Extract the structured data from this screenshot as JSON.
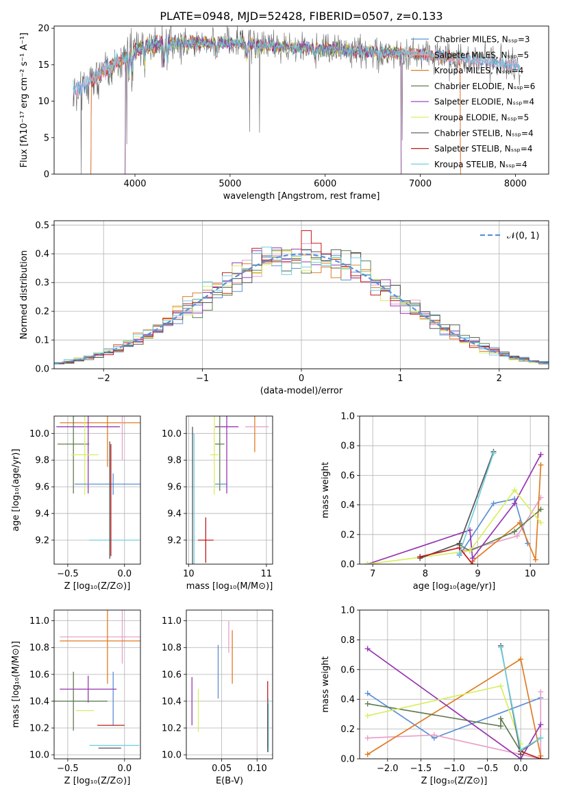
{
  "figure": {
    "title": "PLATE=0948, MJD=52428, FIBERID=0507, z=0.133"
  },
  "colors": {
    "chabrier_miles": "#5b8fd6",
    "salpeter_miles": "#e8a0c8",
    "kroupa_miles": "#e07b22",
    "chabrier_elodie": "#5e7d50",
    "salpeter_elodie": "#9636b0",
    "kroupa_elodie": "#d8ee60",
    "chabrier_stelib": "#555555",
    "salpeter_stelib": "#c01818",
    "kroupa_stelib": "#70d0e0",
    "normal_curve": "#5b8fd6"
  },
  "chart_data": [
    {
      "id": "spectrum",
      "type": "line",
      "title": "PLATE=0948, MJD=52428, FIBERID=0507, z=0.133",
      "xlabel": "wavelength [Angstrom, rest frame]",
      "ylabel": "Flux [fλ10⁻¹⁷ erg cm⁻² s⁻¹ A⁻¹]",
      "xlim": [
        3150,
        8350
      ],
      "ylim": [
        0,
        20.3
      ],
      "xticks": [
        4000,
        5000,
        6000,
        7000,
        8000
      ],
      "yticks": [
        0,
        5,
        10,
        15,
        20
      ],
      "grid": false,
      "legend_position": "top-right",
      "x_range": [
        3350,
        8050
      ],
      "continuum": [
        [
          3350,
          11.3
        ],
        [
          3500,
          12.5
        ],
        [
          3700,
          14.3
        ],
        [
          3900,
          16.0
        ],
        [
          4100,
          17.6
        ],
        [
          4400,
          17.9
        ],
        [
          5000,
          18.0
        ],
        [
          5500,
          17.5
        ],
        [
          6000,
          17.2
        ],
        [
          6500,
          16.8
        ],
        [
          7000,
          16.5
        ],
        [
          7500,
          15.7
        ],
        [
          8050,
          14.8
        ]
      ],
      "series": [
        {
          "name": "Chabrier MILES, Nₛₛₚ=3",
          "color": "chabrier_miles",
          "dropouts": []
        },
        {
          "name": "Salpeter MILES, Nₛₛₚ=5",
          "color": "salpeter_miles",
          "dropouts": []
        },
        {
          "name": "Kroupa MILES, Nₛₛₚ=4",
          "color": "kroupa_miles",
          "dropouts": [
            [
              3350,
              3540
            ],
            [
              7420,
              8050
            ]
          ]
        },
        {
          "name": "Chabrier ELODIE, Nₛₛₚ=6",
          "color": "chabrier_elodie",
          "dropouts": [
            [
              3350,
              3900
            ],
            [
              6800,
              8050
            ]
          ]
        },
        {
          "name": "Salpeter ELODIE, Nₛₛₚ=4",
          "color": "salpeter_elodie",
          "dropouts": [
            [
              3350,
              3900
            ],
            [
              6800,
              8050
            ]
          ]
        },
        {
          "name": "Kroupa ELODIE, Nₛₛₚ=5",
          "color": "kroupa_elodie",
          "dropouts": [
            [
              3350,
              3900
            ],
            [
              6800,
              8050
            ]
          ]
        },
        {
          "name": "Chabrier STELIB, Nₛₛₚ=4",
          "color": "chabrier_stelib",
          "dropouts": []
        },
        {
          "name": "Salpeter STELIB, Nₛₛₚ=4",
          "color": "salpeter_stelib",
          "dropouts": [
            [
              3350,
              3540
            ],
            [
              7420,
              8050
            ]
          ]
        },
        {
          "name": "Kroupa STELIB, Nₛₛₚ=4",
          "color": "kroupa_stelib",
          "dropouts": []
        }
      ]
    },
    {
      "id": "residuals",
      "type": "bar",
      "xlabel": "(data-model)/error",
      "ylabel": "Normed distribution",
      "xlim": [
        -2.5,
        2.5
      ],
      "ylim": [
        0,
        0.515
      ],
      "xticks": [
        -2,
        -1,
        0,
        1,
        2
      ],
      "yticks": [
        0.0,
        0.1,
        0.2,
        0.3,
        0.4,
        0.5
      ],
      "grid": true,
      "legend_position": "top-right",
      "legend": "𝒩(0, 1)",
      "bin_width": 0.1,
      "series_colors": [
        "chabrier_miles",
        "salpeter_miles",
        "kroupa_miles",
        "chabrier_elodie",
        "salpeter_elodie",
        "kroupa_elodie",
        "chabrier_stelib",
        "salpeter_stelib",
        "kroupa_stelib"
      ]
    },
    {
      "id": "age-vs-z",
      "type": "scatter",
      "xlabel": "Z [log₁₀(Z/Z⊙)]",
      "ylabel": "age  [log₁₀(age/yr)]",
      "xlim": [
        -0.62,
        0.14
      ],
      "ylim": [
        9.02,
        10.13
      ],
      "xticks": [
        -0.5,
        0.0
      ],
      "xtick_labels": [
        "−0.5",
        "0.0"
      ],
      "yticks": [
        9.2,
        9.4,
        9.6,
        9.8,
        10.0
      ],
      "grid": true,
      "points": [
        {
          "color": "kroupa_miles",
          "x": -0.15,
          "y": 10.08,
          "xerr": 0.42,
          "yerr": 0.33
        },
        {
          "color": "salpeter_miles",
          "x": -0.02,
          "y": 10.07,
          "xerr": 0.0,
          "yerr": 0.27
        },
        {
          "color": "salpeter_elodie",
          "x": -0.32,
          "y": 10.05,
          "xerr": 0.28,
          "yerr": 0.5
        },
        {
          "color": "chabrier_elodie",
          "x": -0.45,
          "y": 9.92,
          "xerr": 0.14,
          "yerr": 0.37
        },
        {
          "color": "kroupa_elodie",
          "x": -0.35,
          "y": 9.84,
          "xerr": 0.12,
          "yerr": 0.3
        },
        {
          "color": "chabrier_miles",
          "x": -0.1,
          "y": 9.62,
          "xerr": 0.34,
          "yerr": 0.08
        },
        {
          "color": "kroupa_stelib",
          "x": -0.09,
          "y": 9.2,
          "xerr": 0.22,
          "yerr": 0.0
        },
        {
          "color": "chabrier_stelib",
          "x": -0.13,
          "y": 9.5,
          "xerr": 0.0,
          "yerr": 0.44
        },
        {
          "color": "salpeter_stelib",
          "x": -0.12,
          "y": 9.5,
          "xerr": 0.0,
          "yerr": 0.42
        }
      ]
    },
    {
      "id": "age-vs-mass",
      "type": "scatter",
      "xlabel": "mass [log₁₀(M/M⊙)]",
      "ylabel": "",
      "xlim": [
        9.97,
        11.08
      ],
      "ylim": [
        9.02,
        10.13
      ],
      "xticks": [
        10,
        11
      ],
      "yticks": [
        9.2,
        9.4,
        9.6,
        9.8,
        10.0
      ],
      "grid": true,
      "points": [
        {
          "color": "kroupa_miles",
          "x": 10.85,
          "y": 10.08,
          "xerr": 0.0,
          "yerr": 0.22
        },
        {
          "color": "salpeter_miles",
          "x": 10.88,
          "y": 10.05,
          "xerr": 0.15,
          "yerr": 0.0
        },
        {
          "color": "salpeter_elodie",
          "x": 10.49,
          "y": 10.05,
          "xerr": 0.15,
          "yerr": 0.5
        },
        {
          "color": "chabrier_elodie",
          "x": 10.4,
          "y": 9.92,
          "xerr": 0.06,
          "yerr": 0.35
        },
        {
          "color": "kroupa_elodie",
          "x": 10.33,
          "y": 9.84,
          "xerr": 0.05,
          "yerr": 0.3
        },
        {
          "color": "chabrier_miles",
          "x": 10.42,
          "y": 9.62,
          "xerr": 0.08,
          "yerr": 0.0
        },
        {
          "color": "kroupa_stelib",
          "x": 10.07,
          "y": 9.5,
          "xerr": 0.0,
          "yerr": 0.5
        },
        {
          "color": "chabrier_stelib",
          "x": 10.05,
          "y": 9.5,
          "xerr": 0.0,
          "yerr": 0.55
        },
        {
          "color": "salpeter_stelib",
          "x": 10.22,
          "y": 9.2,
          "xerr": 0.1,
          "yerr": 0.17
        }
      ]
    },
    {
      "id": "weight-vs-age",
      "type": "line",
      "xlabel": "age  [log₁₀(age/yr)]",
      "ylabel": "mass weight",
      "xlim": [
        6.75,
        10.35
      ],
      "ylim": [
        0,
        1.0
      ],
      "xticks": [
        7,
        8,
        9,
        10
      ],
      "yticks": [
        0.0,
        0.2,
        0.4,
        0.6,
        0.8,
        1.0
      ],
      "grid": true,
      "series": [
        {
          "color": "chabrier_miles",
          "points": [
            [
              8.65,
              0.06
            ],
            [
              9.3,
              0.41
            ],
            [
              9.7,
              0.44
            ],
            [
              9.95,
              0.14
            ]
          ]
        },
        {
          "color": "salpeter_miles",
          "points": [
            [
              8.75,
              0.09
            ],
            [
              9.75,
              0.19
            ],
            [
              10.2,
              0.45
            ]
          ]
        },
        {
          "color": "kroupa_miles",
          "points": [
            [
              8.9,
              0.02
            ],
            [
              9.8,
              0.28
            ],
            [
              10.1,
              0.03
            ],
            [
              10.2,
              0.67
            ]
          ]
        },
        {
          "color": "chabrier_elodie",
          "points": [
            [
              8.65,
              0.13
            ],
            [
              8.85,
              0.09
            ],
            [
              9.7,
              0.22
            ],
            [
              10.2,
              0.37
            ]
          ]
        },
        {
          "color": "salpeter_elodie",
          "points": [
            [
              6.9,
              0.0
            ],
            [
              8.85,
              0.23
            ],
            [
              8.9,
              0.04
            ],
            [
              9.7,
              0.41
            ],
            [
              10.2,
              0.74
            ]
          ]
        },
        {
          "color": "kroupa_elodie",
          "points": [
            [
              6.9,
              0.0
            ],
            [
              8.85,
              0.09
            ],
            [
              9.7,
              0.5
            ],
            [
              10.2,
              0.28
            ]
          ]
        },
        {
          "color": "chabrier_stelib",
          "points": [
            [
              7.9,
              0.04
            ],
            [
              8.65,
              0.14
            ],
            [
              9.3,
              0.76
            ]
          ]
        },
        {
          "color": "salpeter_stelib",
          "points": [
            [
              7.9,
              0.05
            ],
            [
              8.65,
              0.11
            ],
            [
              8.9,
              0.0
            ]
          ]
        },
        {
          "color": "kroupa_stelib",
          "points": [
            [
              8.65,
              0.07
            ],
            [
              9.3,
              0.75
            ]
          ]
        }
      ]
    },
    {
      "id": "mass-vs-z",
      "type": "scatter",
      "xlabel": "Z [log₁₀(Z/Z⊙)]",
      "ylabel": "mass [log₁₀(M/M⊙)]",
      "xlim": [
        -0.62,
        0.14
      ],
      "ylim": [
        9.97,
        11.08
      ],
      "xticks": [
        -0.5,
        0.0
      ],
      "xtick_labels": [
        "−0.5",
        "0.0"
      ],
      "yticks": [
        10.0,
        10.2,
        10.4,
        10.6,
        10.8,
        11.0
      ],
      "grid": true,
      "points": [
        {
          "color": "salpeter_miles",
          "x": -0.02,
          "y": 10.88,
          "xerr": 0.55,
          "yerr": 0.2
        },
        {
          "color": "kroupa_miles",
          "x": -0.15,
          "y": 10.85,
          "xerr": 0.42,
          "yerr": 0.32
        },
        {
          "color": "chabrier_miles",
          "x": -0.1,
          "y": 10.42,
          "xerr": 0.0,
          "yerr": 0.2
        },
        {
          "color": "salpeter_elodie",
          "x": -0.32,
          "y": 10.49,
          "xerr": 0.25,
          "yerr": 0.1
        },
        {
          "color": "chabrier_elodie",
          "x": -0.45,
          "y": 10.4,
          "xerr": 0.3,
          "yerr": 0.22
        },
        {
          "color": "kroupa_elodie",
          "x": -0.35,
          "y": 10.33,
          "xerr": 0.08,
          "yerr": 0.0
        },
        {
          "color": "salpeter_stelib",
          "x": -0.12,
          "y": 10.22,
          "xerr": 0.12,
          "yerr": 0.0
        },
        {
          "color": "kroupa_stelib",
          "x": -0.09,
          "y": 10.07,
          "xerr": 0.22,
          "yerr": 0.0
        },
        {
          "color": "chabrier_stelib",
          "x": -0.13,
          "y": 10.05,
          "xerr": 0.1,
          "yerr": 0.0
        }
      ]
    },
    {
      "id": "mass-vs-ebv",
      "type": "scatter",
      "xlabel": "E(B-V)",
      "ylabel": "",
      "xlim": [
        0.0,
        0.122
      ],
      "ylim": [
        9.97,
        11.08
      ],
      "xticks": [
        0.05,
        0.1
      ],
      "xtick_labels": [
        "0.05",
        "0.10"
      ],
      "yticks": [
        10.0,
        10.2,
        10.4,
        10.6,
        10.8,
        11.0
      ],
      "grid": true,
      "points": [
        {
          "color": "salpeter_miles",
          "x": 0.06,
          "y": 10.88,
          "xerr": 0.0,
          "yerr": 0.12
        },
        {
          "color": "kroupa_miles",
          "x": 0.065,
          "y": 10.73,
          "xerr": 0.0,
          "yerr": 0.2
        },
        {
          "color": "chabrier_miles",
          "x": 0.045,
          "y": 10.62,
          "xerr": 0.0,
          "yerr": 0.2
        },
        {
          "color": "salpeter_elodie",
          "x": 0.008,
          "y": 10.4,
          "xerr": 0.0,
          "yerr": 0.18
        },
        {
          "color": "kroupa_elodie",
          "x": 0.017,
          "y": 10.33,
          "xerr": 0.0,
          "yerr": 0.16
        },
        {
          "color": "salpeter_stelib",
          "x": 0.115,
          "y": 10.3,
          "xerr": 0.0,
          "yerr": 0.25
        },
        {
          "color": "kroupa_stelib",
          "x": 0.116,
          "y": 10.22,
          "xerr": 0.0,
          "yerr": 0.2
        },
        {
          "color": "chabrier_stelib",
          "x": 0.115,
          "y": 10.2,
          "xerr": 0.0,
          "yerr": 0.18
        }
      ]
    },
    {
      "id": "weight-vs-z",
      "type": "line",
      "xlabel": "Z [log₁₀(Z/Z⊙)]",
      "ylabel": "mass weight",
      "xlim": [
        -2.42,
        0.42
      ],
      "ylim": [
        0,
        1.0
      ],
      "xticks": [
        -2.0,
        -1.5,
        -1.0,
        -0.5,
        0.0
      ],
      "xtick_labels": [
        "−2.0",
        "−1.5",
        "−1.0",
        "−0.5",
        "0.0"
      ],
      "yticks": [
        0.0,
        0.2,
        0.4,
        0.6,
        0.8,
        1.0
      ],
      "grid": true,
      "series": [
        {
          "color": "chabrier_miles",
          "points": [
            [
              -2.3,
              0.44
            ],
            [
              -1.3,
              0.14
            ],
            [
              0.3,
              0.41
            ]
          ]
        },
        {
          "color": "salpeter_miles",
          "points": [
            [
              -2.3,
              0.14
            ],
            [
              -1.3,
              0.16
            ],
            [
              0.3,
              0.0
            ],
            [
              0.3,
              0.45
            ]
          ]
        },
        {
          "color": "kroupa_miles",
          "points": [
            [
              -2.3,
              0.03
            ],
            [
              0.0,
              0.67
            ],
            [
              0.3,
              0.02
            ]
          ]
        },
        {
          "color": "chabrier_elodie",
          "points": [
            [
              -2.3,
              0.37
            ],
            [
              -0.3,
              0.22
            ],
            [
              -0.3,
              0.27
            ],
            [
              0.0,
              0.05
            ],
            [
              0.3,
              0.14
            ]
          ]
        },
        {
          "color": "salpeter_elodie",
          "points": [
            [
              -2.3,
              0.74
            ],
            [
              0.0,
              0.0
            ],
            [
              0.3,
              0.23
            ]
          ]
        },
        {
          "color": "kroupa_elodie",
          "points": [
            [
              -2.3,
              0.29
            ],
            [
              -0.3,
              0.49
            ],
            [
              0.0,
              0.1
            ]
          ]
        },
        {
          "color": "chabrier_stelib",
          "points": [
            [
              -0.3,
              0.76
            ],
            [
              0.0,
              0.03
            ]
          ]
        },
        {
          "color": "salpeter_stelib",
          "points": [
            [
              0.0,
              0.05
            ],
            [
              0.3,
              0.0
            ]
          ]
        },
        {
          "color": "kroupa_stelib",
          "points": [
            [
              -0.3,
              0.75
            ],
            [
              0.0,
              0.06
            ],
            [
              0.3,
              0.14
            ]
          ]
        }
      ]
    }
  ]
}
